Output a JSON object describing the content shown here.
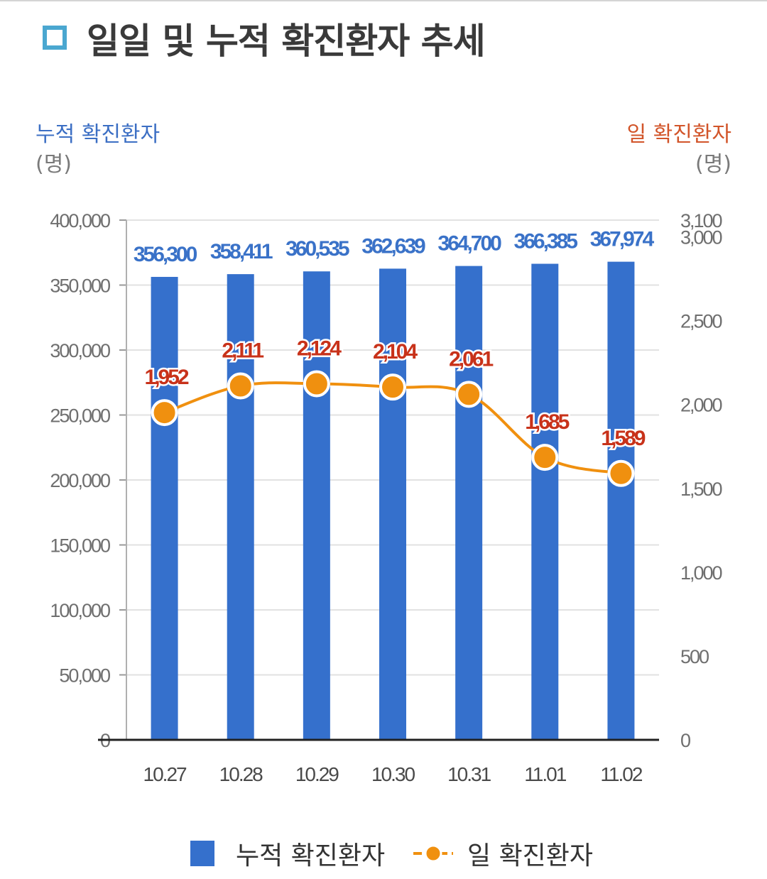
{
  "title": "일일 및 누적 확진환자 추세",
  "left_axis": {
    "title": "누적 확진환자",
    "unit": "(명)",
    "color": "#3c6fc4"
  },
  "right_axis": {
    "title": "일 확진환자",
    "unit": "(명)",
    "color": "#d2552a"
  },
  "colors": {
    "bar": "#3570cc",
    "bar_label": "#3a72c8",
    "line": "#f0900f",
    "line_label": "#c8321a",
    "title_marker": "#4aa7d0"
  },
  "chart_data": {
    "type": "bar+line",
    "title": "일일 및 누적 확진환자 추세",
    "categories": [
      "10.27",
      "10.28",
      "10.29",
      "10.30",
      "10.31",
      "11.01",
      "11.02"
    ],
    "series": [
      {
        "name": "누적 확진환자",
        "type": "bar",
        "axis": "left",
        "values": [
          356300,
          358411,
          360535,
          362639,
          364700,
          366385,
          367974
        ],
        "labels": [
          "356,300",
          "358,411",
          "360,535",
          "362,639",
          "364,700",
          "366,385",
          "367,974"
        ]
      },
      {
        "name": "일 확진환자",
        "type": "line",
        "axis": "right",
        "values": [
          1952,
          2111,
          2124,
          2104,
          2061,
          1685,
          1589
        ],
        "labels": [
          "1,952",
          "2,111",
          "2,124",
          "2,104",
          "2,061",
          "1,685",
          "1,589"
        ]
      }
    ],
    "y_left": {
      "label": "누적 확진환자 (명)",
      "range": [
        0,
        400000
      ],
      "ticks": [
        0,
        50000,
        100000,
        150000,
        200000,
        250000,
        300000,
        350000,
        400000
      ],
      "tick_labels": [
        "0",
        "50,000",
        "100,000",
        "150,000",
        "200,000",
        "250,000",
        "300,000",
        "350,000",
        "400,000"
      ]
    },
    "y_right": {
      "label": "일 확진환자 (명)",
      "range": [
        0,
        3100
      ],
      "ticks": [
        0,
        500,
        1000,
        1500,
        2000,
        2500,
        3000,
        3100
      ],
      "tick_labels": [
        "0",
        "500",
        "1,000",
        "1,500",
        "2,000",
        "2,500",
        "3,000",
        "3,100"
      ]
    },
    "grid": true,
    "legend": {
      "position": "bottom",
      "entries": [
        "누적 확진환자",
        "일 확진환자"
      ]
    }
  }
}
